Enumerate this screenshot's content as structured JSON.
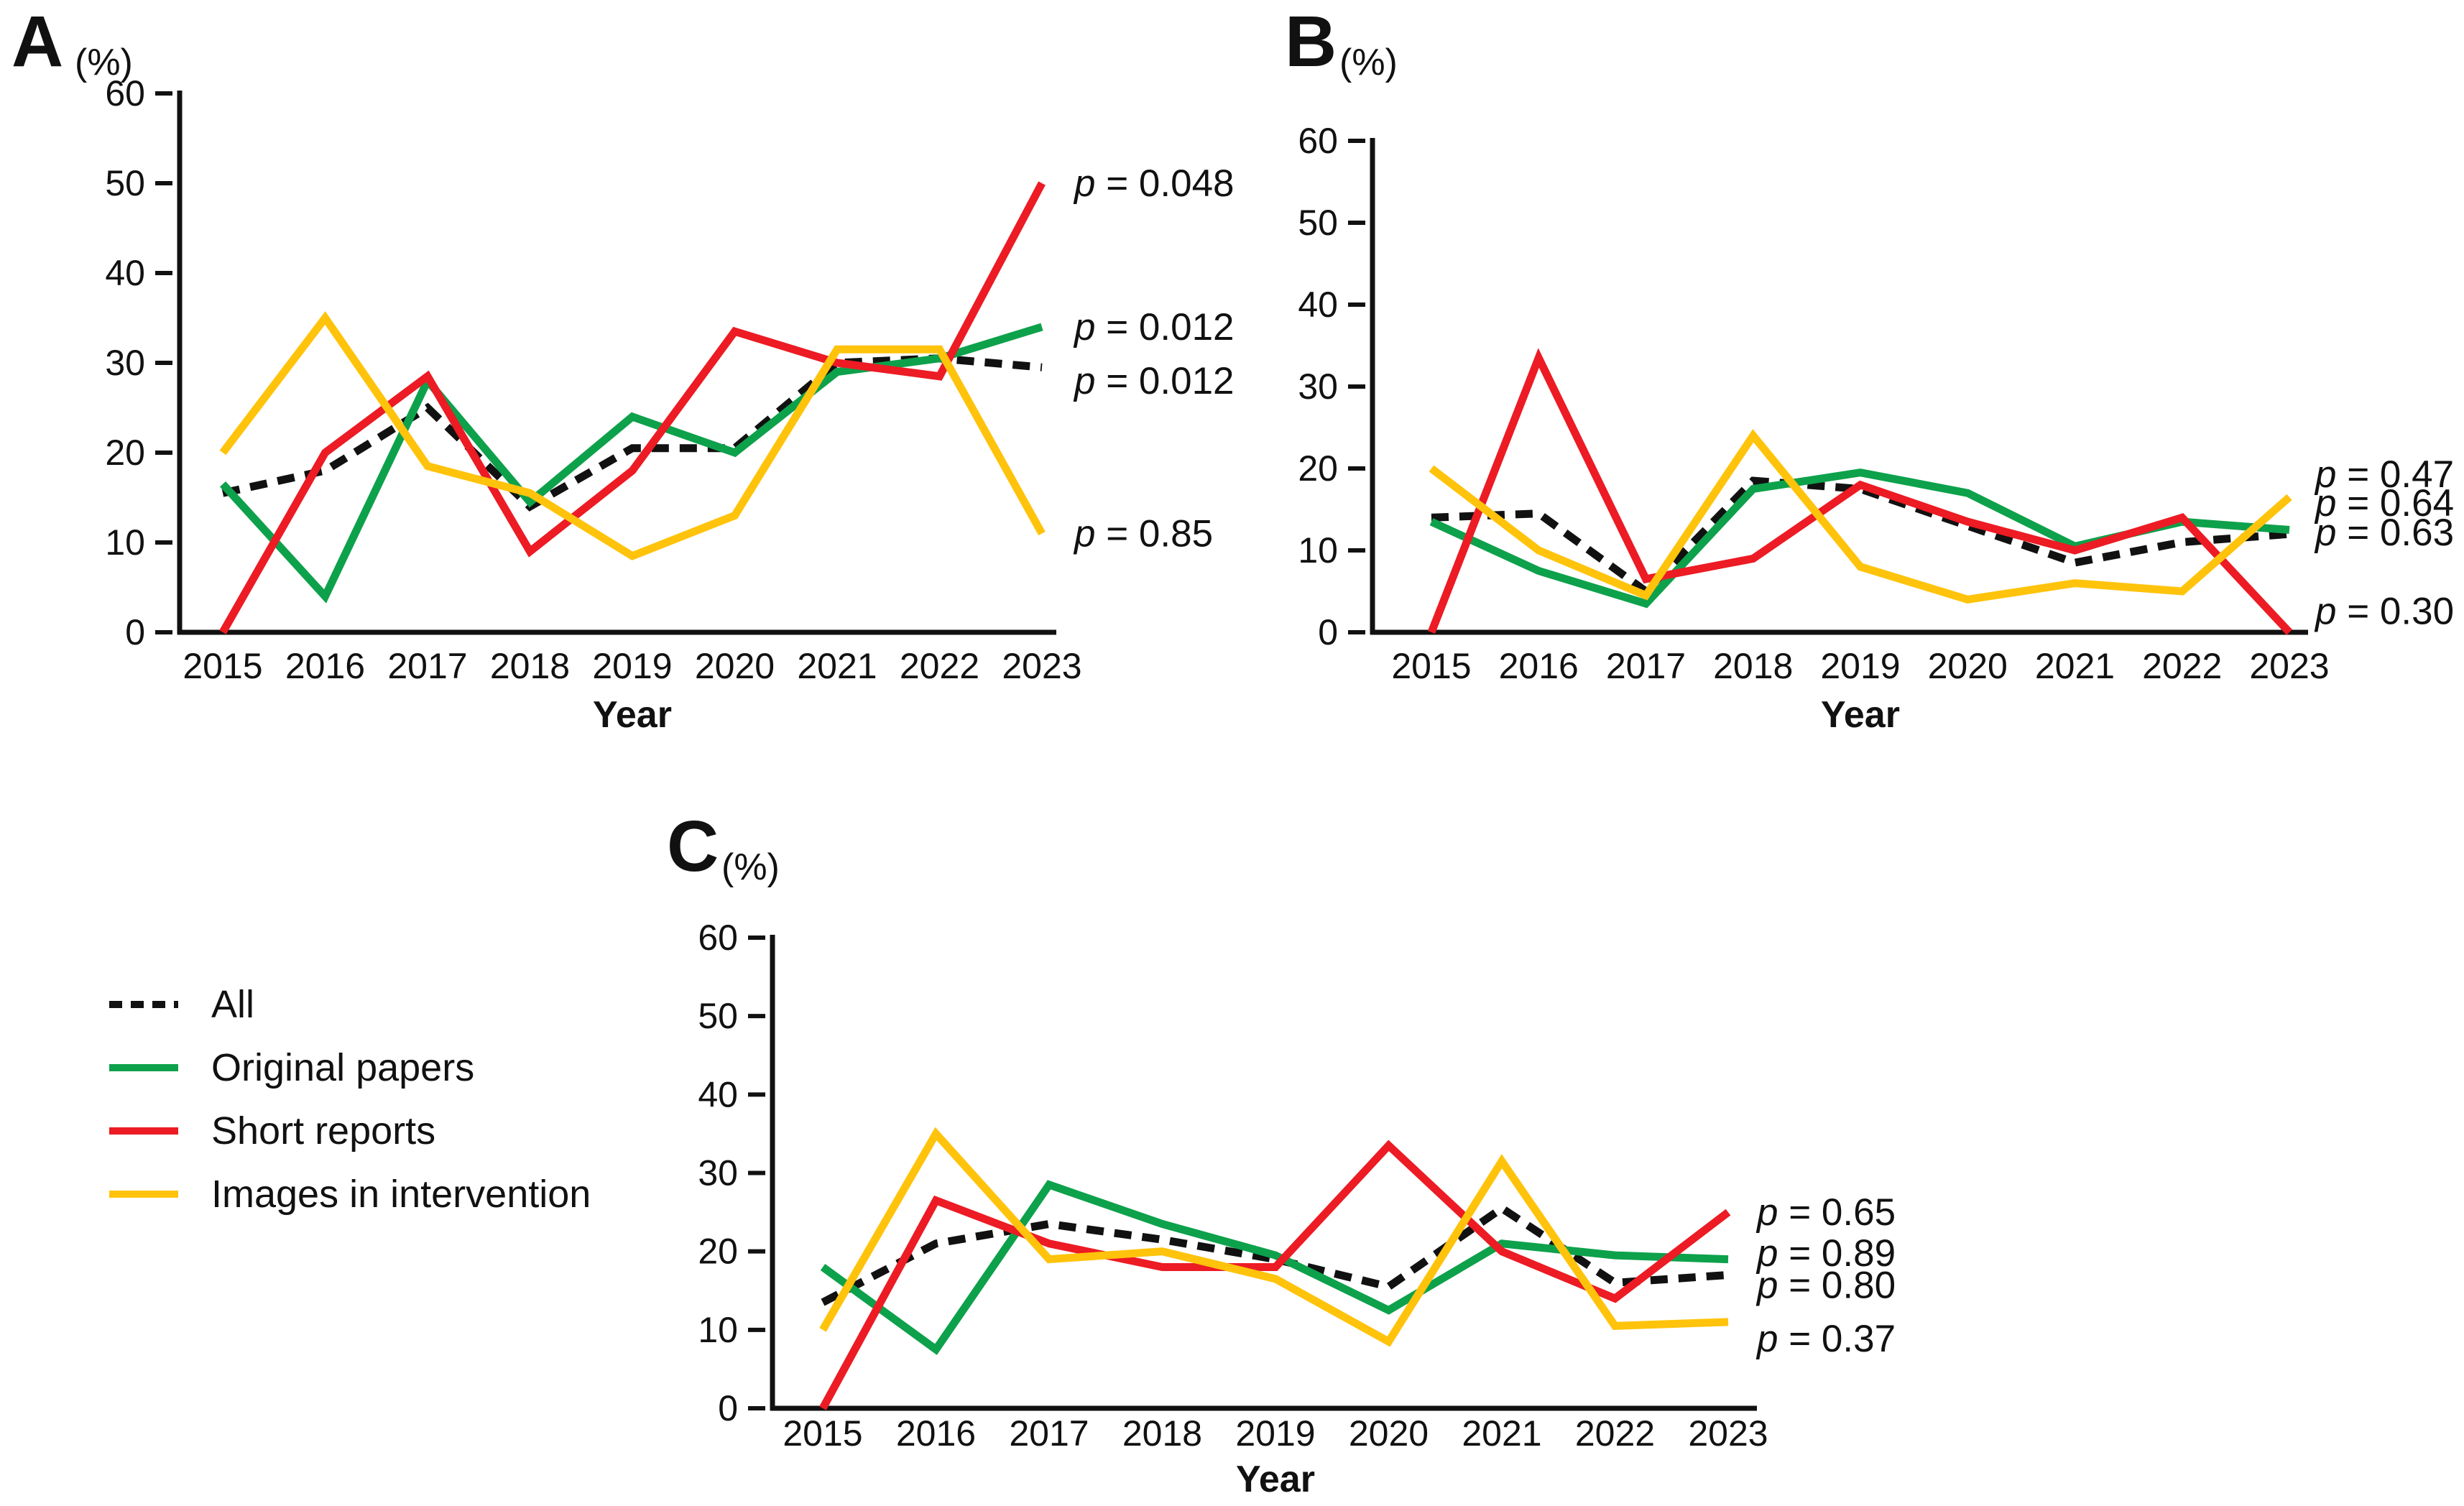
{
  "legend": {
    "items": [
      {
        "label": "All",
        "color": "#111111",
        "dashed": true
      },
      {
        "label": "Original papers",
        "color": "#0da14b",
        "dashed": false
      },
      {
        "label": "Short reports",
        "color": "#ec1b24",
        "dashed": false
      },
      {
        "label": "Images in intervention",
        "color": "#ffc30b",
        "dashed": false
      }
    ]
  },
  "chart_data": [
    {
      "type": "line",
      "panel": "A",
      "unit": "(%)",
      "xlabel": "Year",
      "ylim": [
        0,
        60
      ],
      "yticks": [
        0,
        10,
        20,
        30,
        40,
        50,
        60
      ],
      "grid": false,
      "categories": [
        "2015",
        "2016",
        "2017",
        "2018",
        "2019",
        "2020",
        "2021",
        "2022",
        "2023"
      ],
      "series": [
        {
          "name": "All",
          "color": "#111111",
          "dashed": true,
          "values": [
            15.5,
            18,
            25,
            14,
            20.5,
            20.5,
            30,
            30.5,
            29.5
          ]
        },
        {
          "name": "Original papers",
          "color": "#0da14b",
          "dashed": false,
          "values": [
            16.5,
            4,
            28,
            14.5,
            24,
            20,
            29,
            30.5,
            34
          ]
        },
        {
          "name": "Short reports",
          "color": "#ec1b24",
          "dashed": false,
          "values": [
            0,
            20,
            28.5,
            9,
            18,
            33.5,
            30,
            28.5,
            50
          ]
        },
        {
          "name": "Images in intervention",
          "color": "#ffc30b",
          "dashed": false,
          "values": [
            20,
            35,
            18.5,
            15.5,
            8.5,
            13,
            31.5,
            31.5,
            11
          ]
        }
      ],
      "p_values": [
        {
          "text": "p = 0.048",
          "series": "Short reports",
          "label_y": 50
        },
        {
          "text": "p = 0.012",
          "series": "Original papers",
          "label_y": 34
        },
        {
          "text": "p = 0.012",
          "series": "All",
          "label_y": 28
        },
        {
          "text": "p = 0.85",
          "series": "Images in intervention",
          "label_y": 11
        }
      ]
    },
    {
      "type": "line",
      "panel": "B",
      "unit": "(%)",
      "xlabel": "Year",
      "ylim": [
        0,
        60
      ],
      "yticks": [
        0,
        10,
        20,
        30,
        40,
        50,
        60
      ],
      "grid": false,
      "categories": [
        "2015",
        "2016",
        "2017",
        "2018",
        "2019",
        "2020",
        "2021",
        "2022",
        "2023"
      ],
      "series": [
        {
          "name": "All",
          "color": "#111111",
          "dashed": true,
          "values": [
            14,
            14.5,
            5,
            18.5,
            17.5,
            13,
            8.5,
            11,
            12
          ]
        },
        {
          "name": "Original papers",
          "color": "#0da14b",
          "dashed": false,
          "values": [
            13.5,
            7.5,
            3.5,
            17.5,
            19.5,
            17,
            10.5,
            13.5,
            12.5
          ]
        },
        {
          "name": "Short reports",
          "color": "#ec1b24",
          "dashed": false,
          "values": [
            0,
            33.5,
            6.5,
            9,
            18,
            13.5,
            10,
            14,
            0
          ]
        },
        {
          "name": "Images in intervention",
          "color": "#ffc30b",
          "dashed": false,
          "values": [
            20,
            10,
            4.5,
            24,
            8,
            4,
            6,
            5,
            16.5
          ]
        }
      ],
      "p_values": [
        {
          "text": "p = 0.47",
          "series": "Images in intervention",
          "label_y": 19.3
        },
        {
          "text": "p = 0.64",
          "series": "Original papers",
          "label_y": 15.8
        },
        {
          "text": "p = 0.63",
          "series": "All",
          "label_y": 12.2
        },
        {
          "text": "p = 0.30",
          "series": "Short reports",
          "label_y": 2.6
        }
      ]
    },
    {
      "type": "line",
      "panel": "C",
      "unit": "(%)",
      "xlabel": "Year",
      "ylim": [
        0,
        60
      ],
      "yticks": [
        0,
        10,
        20,
        30,
        40,
        50,
        60
      ],
      "grid": false,
      "categories": [
        "2015",
        "2016",
        "2017",
        "2018",
        "2019",
        "2020",
        "2021",
        "2022",
        "2023"
      ],
      "series": [
        {
          "name": "All",
          "color": "#111111",
          "dashed": true,
          "values": [
            13.5,
            21,
            23.5,
            21.5,
            19,
            15.5,
            25.5,
            16,
            17
          ]
        },
        {
          "name": "Original papers",
          "color": "#0da14b",
          "dashed": false,
          "values": [
            18,
            7.5,
            28.5,
            23.5,
            19.5,
            12.5,
            21,
            19.5,
            19
          ]
        },
        {
          "name": "Short reports",
          "color": "#ec1b24",
          "dashed": false,
          "values": [
            0,
            26.5,
            21,
            18,
            18,
            33.5,
            20,
            14,
            25
          ]
        },
        {
          "name": "Images in intervention",
          "color": "#ffc30b",
          "dashed": false,
          "values": [
            10,
            35,
            19,
            20,
            16.5,
            8.5,
            31.5,
            10.5,
            11
          ]
        }
      ],
      "p_values": [
        {
          "text": "p = 0.65",
          "series": "Short reports",
          "label_y": 25
        },
        {
          "text": "p = 0.89",
          "series": "Original papers",
          "label_y": 19.8
        },
        {
          "text": "p = 0.80",
          "series": "All",
          "label_y": 15.7
        },
        {
          "text": "p = 0.37",
          "series": "Images in intervention",
          "label_y": 8.9
        }
      ]
    }
  ]
}
